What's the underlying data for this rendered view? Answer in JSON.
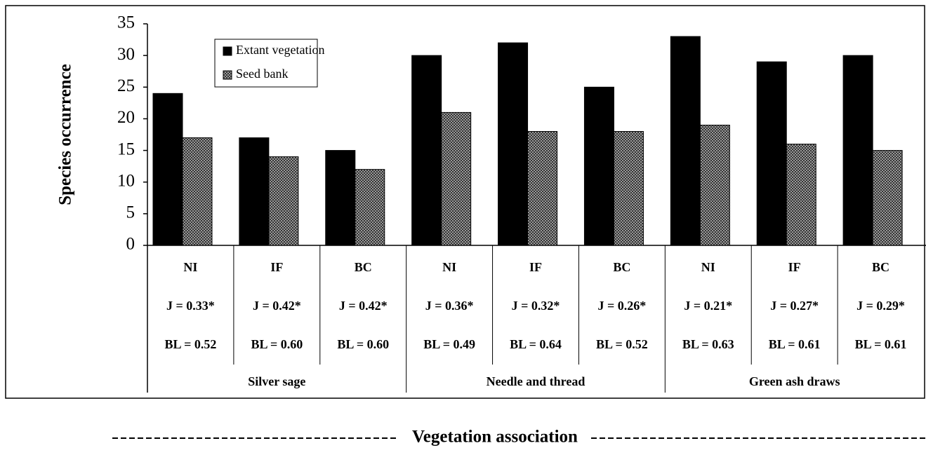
{
  "chart_data": {
    "type": "bar",
    "y_label": "Species occurrence",
    "x_label": "Vegetation association",
    "categories": [
      "NI",
      "IF",
      "BC",
      "NI",
      "IF",
      "BC",
      "NI",
      "IF",
      "BC"
    ],
    "j_labels": [
      "J = 0.33*",
      "J = 0.42*",
      "J = 0.42*",
      "J = 0.36*",
      "J = 0.32*",
      "J = 0.26*",
      "J = 0.21*",
      "J = 0.27*",
      "J = 0.29*"
    ],
    "bl_labels": [
      "BL = 0.52",
      "BL = 0.60",
      "BL = 0.60",
      "BL = 0.49",
      "BL = 0.64",
      "BL = 0.52",
      "BL = 0.63",
      "BL = 0.61",
      "BL = 0.61"
    ],
    "groups": [
      "Silver sage",
      "Needle and thread",
      "Green ash draws"
    ],
    "series": [
      {
        "name": "Extant vegetation",
        "color": "#000000",
        "values": [
          24,
          17,
          15,
          30,
          32,
          25,
          33,
          29,
          30
        ]
      },
      {
        "name": "Seed bank",
        "color": "#999999",
        "values": [
          17,
          14,
          12,
          21,
          18,
          18,
          19,
          16,
          15
        ]
      }
    ],
    "ylim": [
      0,
      35
    ],
    "yticks": [
      0,
      5,
      10,
      15,
      20,
      25,
      30,
      35
    ],
    "legend": "upper left"
  }
}
